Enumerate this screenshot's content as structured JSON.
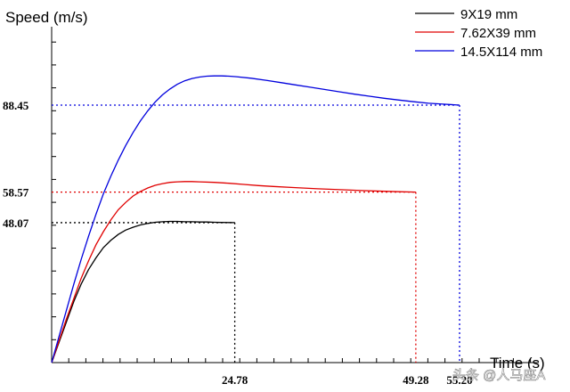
{
  "chart_data": {
    "type": "line",
    "title": "",
    "ylabel": "Speed (m/s)",
    "xlabel": "Time (s)",
    "xlim": [
      0,
      55.2
    ],
    "ylim": [
      0,
      98
    ],
    "grid": false,
    "legend_position": "top-right",
    "series": [
      {
        "name": "9X19 mm",
        "color": "#000000",
        "end_x": 24.78,
        "end_y": 48.07,
        "points": [
          [
            0,
            0
          ],
          [
            1,
            7
          ],
          [
            2,
            14
          ],
          [
            3,
            21
          ],
          [
            4,
            27
          ],
          [
            5,
            32
          ],
          [
            6,
            36
          ],
          [
            7,
            39.5
          ],
          [
            8,
            42
          ],
          [
            9,
            44
          ],
          [
            10,
            45.5
          ],
          [
            11,
            46.5
          ],
          [
            12,
            47.3
          ],
          [
            13,
            47.8
          ],
          [
            14,
            48.2
          ],
          [
            15,
            48.4
          ],
          [
            16,
            48.5
          ],
          [
            17,
            48.5
          ],
          [
            18,
            48.4
          ],
          [
            19,
            48.4
          ],
          [
            20,
            48.3
          ],
          [
            21,
            48.3
          ],
          [
            22,
            48.2
          ],
          [
            23,
            48.15
          ],
          [
            24,
            48.1
          ],
          [
            24.78,
            48.07
          ]
        ]
      },
      {
        "name": "7.62X39 mm",
        "color": "#e00000",
        "end_x": 49.28,
        "end_y": 58.57,
        "points": [
          [
            0,
            0
          ],
          [
            1,
            7.5
          ],
          [
            2,
            15
          ],
          [
            3,
            22
          ],
          [
            4,
            29
          ],
          [
            5,
            35
          ],
          [
            6,
            40.5
          ],
          [
            7,
            45
          ],
          [
            8,
            49
          ],
          [
            9,
            52.5
          ],
          [
            10,
            55
          ],
          [
            11,
            57.2
          ],
          [
            12,
            58.8
          ],
          [
            13,
            60
          ],
          [
            14,
            60.9
          ],
          [
            15,
            61.5
          ],
          [
            16,
            61.9
          ],
          [
            17,
            62.1
          ],
          [
            18,
            62.2
          ],
          [
            19,
            62.2
          ],
          [
            20,
            62.1
          ],
          [
            22,
            61.9
          ],
          [
            24,
            61.6
          ],
          [
            26,
            61.2
          ],
          [
            28,
            60.8
          ],
          [
            30,
            60.5
          ],
          [
            33,
            60.1
          ],
          [
            36,
            59.7
          ],
          [
            39,
            59.4
          ],
          [
            42,
            59.1
          ],
          [
            45,
            58.85
          ],
          [
            47,
            58.7
          ],
          [
            49.28,
            58.57
          ]
        ]
      },
      {
        "name": "14.5X114 mm",
        "color": "#0000dd",
        "end_x": 55.2,
        "end_y": 88.45,
        "points": [
          [
            0,
            0
          ],
          [
            1,
            9
          ],
          [
            2,
            18
          ],
          [
            3,
            27
          ],
          [
            4,
            35.5
          ],
          [
            5,
            43.5
          ],
          [
            6,
            51
          ],
          [
            7,
            58
          ],
          [
            8,
            64
          ],
          [
            9,
            69.5
          ],
          [
            10,
            74.5
          ],
          [
            11,
            79
          ],
          [
            12,
            83
          ],
          [
            13,
            86.5
          ],
          [
            14,
            89.5
          ],
          [
            15,
            92
          ],
          [
            16,
            94
          ],
          [
            17,
            95.6
          ],
          [
            18,
            96.8
          ],
          [
            19,
            97.6
          ],
          [
            20,
            98.1
          ],
          [
            21,
            98.4
          ],
          [
            22,
            98.5
          ],
          [
            23,
            98.5
          ],
          [
            24,
            98.4
          ],
          [
            25,
            98.2
          ],
          [
            27,
            97.7
          ],
          [
            29,
            97
          ],
          [
            31,
            96.2
          ],
          [
            33,
            95.4
          ],
          [
            35,
            94.6
          ],
          [
            37,
            93.8
          ],
          [
            39,
            93
          ],
          [
            41,
            92.2
          ],
          [
            43,
            91.5
          ],
          [
            45,
            90.8
          ],
          [
            47,
            90.2
          ],
          [
            49,
            89.6
          ],
          [
            51,
            89.1
          ],
          [
            53,
            88.8
          ],
          [
            55.2,
            88.45
          ]
        ]
      }
    ],
    "y_marker_labels": [
      "88.45",
      "58.57",
      "48.07"
    ],
    "x_marker_labels": [
      "24.78",
      "49.28",
      "55.20"
    ]
  },
  "watermark": "头条 @人马座A"
}
